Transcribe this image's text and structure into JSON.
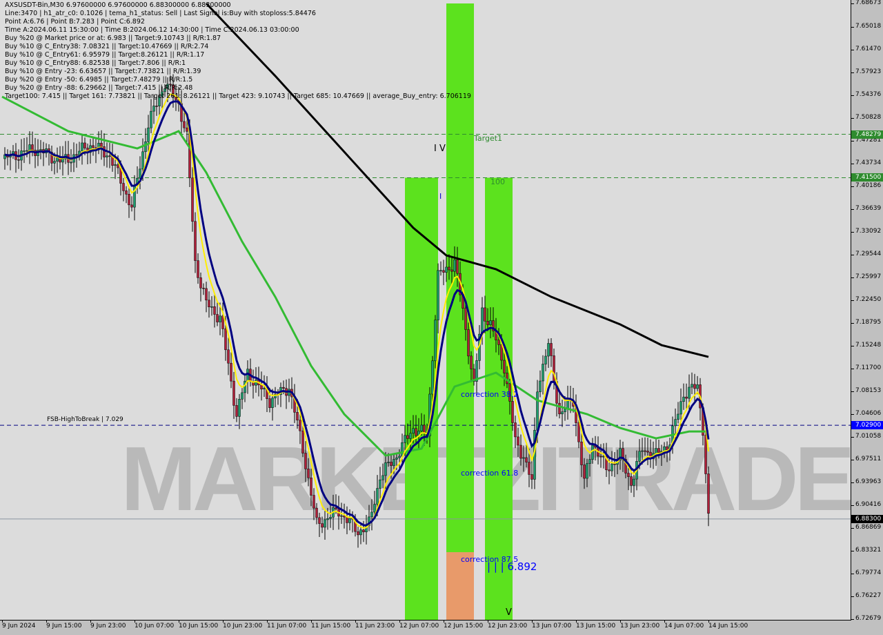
{
  "header": {
    "symbol_line": "AXSUSDT-Bin,M30  6.97600000 6.97600000 6.88300000 6.88300000",
    "lines": [
      "Line:3470 | h1_atr_c0: 0.1026 | tema_h1_status: Sell | Last Signal is:Buy with stoploss:5.84476",
      "Point A:6.76 | Point B:7.283 | Point C:6.892",
      "Time A:2024.06.11 15:30:00 | Time B:2024.06.12 14:30:00 | Time C:2024.06.13 03:00:00",
      "Buy %20 @ Market price or at: 6.983 || Target:9.10743 || R/R:1.87",
      "Buy %10 @ C_Entry38: 7.08321 || Target:10.47669 || R/R:2.74",
      "Buy %10 @ C_Entry61: 6.95979 || Target:8.26121 || R/R:1.17",
      "Buy %10 @ C_Entry88: 6.82538 || Target:7.806 || R/R:1",
      "Buy %10 @ Entry -23: 6.63657 || Target:7.73821 || R/R:1.39",
      "Buy %20 @ Entry -50: 6.4985 || Target:7.48279 || R/R:1.5",
      "Buy %20 @ Entry -88: 6.29662 || Target:7.415 || R/R:2.48",
      "Target100: 7.415 || Target 161: 7.73821 || Target 261: 8.26121 || Target 423: 9.10743 || Target 685: 10.47669 || average_Buy_entry: 6.706119"
    ]
  },
  "annotations": {
    "target1": "Target1",
    "level100": "100",
    "wave_iv": "I V",
    "wave_i": "I",
    "wave_v": "V",
    "correction382": "correction 38.2",
    "correction618": "correction 61.8",
    "correction875": "correction 87.5",
    "point_c": "| | | 6.892",
    "fsb": "FSB-HighToBreak | 7.029",
    "watermark": "MARKETZITRADE"
  },
  "chart_data": {
    "type": "candlestick",
    "title": "AXSUSDT-Bin,M30",
    "ylim": [
      6.72679,
      7.68673
    ],
    "y_ticks": [
      "7.68673",
      "7.65018",
      "7.61470",
      "7.57923",
      "7.54376",
      "7.50828",
      "7.47281",
      "7.43734",
      "7.40186",
      "7.36639",
      "7.33092",
      "7.29544",
      "7.25997",
      "7.22450",
      "7.18795",
      "7.15248",
      "7.11700",
      "7.08153",
      "7.04606",
      "7.01058",
      "6.97511",
      "6.93963",
      "6.90416",
      "6.86869",
      "6.83321",
      "6.79774",
      "6.76227",
      "6.72679"
    ],
    "x_ticks": [
      "9 Jun 2024",
      "9 Jun 15:00",
      "9 Jun 23:00",
      "10 Jun 07:00",
      "10 Jun 15:00",
      "10 Jun 23:00",
      "11 Jun 07:00",
      "11 Jun 15:00",
      "11 Jun 23:00",
      "12 Jun 07:00",
      "12 Jun 15:00",
      "12 Jun 23:00",
      "13 Jun 07:00",
      "13 Jun 15:00",
      "13 Jun 23:00",
      "14 Jun 07:00",
      "14 Jun 15:00"
    ],
    "x_start": "2024-06-09 07:00",
    "bar_minutes": 30,
    "close_path": [
      [
        "2024-06-09 07:30",
        7.4446
      ],
      [
        "2024-06-09 13:00",
        7.4607
      ],
      [
        "2024-06-09 18:00",
        7.4392
      ],
      [
        "2024-06-09 23:00",
        7.4661
      ],
      [
        "2024-06-10 02:30",
        7.45
      ],
      [
        "2024-06-10 06:30",
        7.3693
      ],
      [
        "2024-06-10 09:30",
        7.4984
      ],
      [
        "2024-06-10 12:30",
        7.563
      ],
      [
        "2024-06-10 15:00",
        7.5307
      ],
      [
        "2024-06-10 16:30",
        7.4769
      ],
      [
        "2024-06-10 18:00",
        7.2832
      ],
      [
        "2024-06-10 20:00",
        7.2186
      ],
      [
        "2024-06-10 22:30",
        7.197
      ],
      [
        "2024-06-11 01:30",
        7.0464
      ],
      [
        "2024-06-11 03:30",
        7.111
      ],
      [
        "2024-06-11 07:30",
        7.0679
      ],
      [
        "2024-06-11 11:00",
        7.0894
      ],
      [
        "2024-06-11 13:30",
        6.9926
      ],
      [
        "2024-06-11 16:00",
        6.8742
      ],
      [
        "2024-06-11 20:00",
        6.8957
      ],
      [
        "2024-06-11 23:30",
        6.8634
      ],
      [
        "2024-06-12 01:30",
        6.8742
      ],
      [
        "2024-06-12 03:30",
        6.9495
      ],
      [
        "2024-06-12 06:30",
        6.9818
      ],
      [
        "2024-06-12 09:30",
        7.0248
      ],
      [
        "2024-06-12 12:00",
        7.014
      ],
      [
        "2024-06-12 14:00",
        7.2616
      ],
      [
        "2024-06-12 17:00",
        7.2832
      ],
      [
        "2024-06-12 18:30",
        7.2078
      ],
      [
        "2024-06-12 20:30",
        7.0894
      ],
      [
        "2024-06-12 22:00",
        7.2078
      ],
      [
        "2024-06-12 23:30",
        7.1863
      ],
      [
        "2024-06-13 02:00",
        7.1217
      ],
      [
        "2024-06-13 04:00",
        7.0033
      ],
      [
        "2024-06-13 05:30",
        6.9818
      ],
      [
        "2024-06-13 07:00",
        6.9388
      ],
      [
        "2024-06-13 08:00",
        7.0894
      ],
      [
        "2024-06-13 10:00",
        7.154
      ],
      [
        "2024-06-13 12:00",
        7.0464
      ],
      [
        "2024-06-13 14:30",
        7.0679
      ],
      [
        "2024-06-13 16:30",
        6.9388
      ],
      [
        "2024-06-13 18:00",
        7.0033
      ],
      [
        "2024-06-13 20:30",
        6.9603
      ],
      [
        "2024-06-13 23:00",
        6.9818
      ],
      [
        "2024-06-14 01:00",
        6.9388
      ],
      [
        "2024-06-14 03:00",
        6.9926
      ],
      [
        "2024-06-14 05:30",
        6.9818
      ],
      [
        "2024-06-14 08:00",
        7.0033
      ],
      [
        "2024-06-14 10:30",
        7.0786
      ],
      [
        "2024-06-14 13:00",
        7.0894
      ],
      [
        "2024-06-14 14:00",
        7.0248
      ],
      [
        "2024-06-14 15:00",
        6.883
      ]
    ],
    "long_ma": [
      [
        "2024-06-10 20:00",
        7.6867
      ],
      [
        "2024-06-11 08:30",
        7.5737
      ],
      [
        "2024-06-11 21:00",
        7.4553
      ],
      [
        "2024-06-12 09:30",
        7.337
      ],
      [
        "2024-06-12 15:30",
        7.2939
      ],
      [
        "2024-06-13 00:30",
        7.2724
      ],
      [
        "2024-06-13 10:30",
        7.2293
      ],
      [
        "2024-06-13 23:00",
        7.1863
      ],
      [
        "2024-06-14 06:30",
        7.154
      ],
      [
        "2024-06-14 15:00",
        7.1357
      ]
    ],
    "green_ma": [
      [
        "2024-06-09 07:00",
        7.5414
      ],
      [
        "2024-06-09 19:00",
        7.4876
      ],
      [
        "2024-06-10 07:30",
        7.4607
      ],
      [
        "2024-06-10 15:00",
        7.4876
      ],
      [
        "2024-06-10 20:00",
        7.423
      ],
      [
        "2024-06-11 02:30",
        7.3154
      ],
      [
        "2024-06-11 08:30",
        7.2293
      ],
      [
        "2024-06-11 15:00",
        7.1217
      ],
      [
        "2024-06-11 21:00",
        7.0464
      ],
      [
        "2024-06-12 04:30",
        6.9818
      ],
      [
        "2024-06-12 11:00",
        6.9926
      ],
      [
        "2024-06-12 17:00",
        7.0894
      ],
      [
        "2024-06-13 00:30",
        7.111
      ],
      [
        "2024-06-13 08:00",
        7.0679
      ],
      [
        "2024-06-13 17:00",
        7.0464
      ],
      [
        "2024-06-13 23:00",
        7.0248
      ],
      [
        "2024-06-14 05:30",
        7.0087
      ],
      [
        "2024-06-14 11:30",
        7.0194
      ],
      [
        "2024-06-14 15:00",
        7.0194
      ]
    ],
    "levels": [
      {
        "label": "7.48279",
        "value": 7.48279,
        "color": "#2e8b2e",
        "style": "dashed"
      },
      {
        "label": "7.41500",
        "value": 7.415,
        "color": "#2e8b2e",
        "style": "dashed"
      },
      {
        "label": "7.02900",
        "value": 7.029,
        "color": "#0000ff",
        "style": "dashed"
      },
      {
        "label": "6.88300",
        "value": 6.883,
        "color": "#000000",
        "style": "solid"
      }
    ],
    "zones": [
      {
        "from": "2024-06-12 08:00",
        "to": "2024-06-12 14:00",
        "top": 7.415,
        "color": "#5ce21e"
      },
      {
        "from": "2024-06-12 15:30",
        "to": "2024-06-12 20:30",
        "top": 7.68673,
        "color": "#5ce21e"
      },
      {
        "from": "2024-06-12 22:30",
        "to": "2024-06-13 03:30",
        "top": 7.415,
        "color": "#5ce21e"
      }
    ],
    "colors": {
      "bull": "#1e9e6e",
      "bear": "#b0203a",
      "long_ma": "#000000",
      "green_ma": "#33bb33",
      "fast_ma": "#000080",
      "signal_ma": "#ffee00",
      "envelope": "#ff4400"
    }
  }
}
